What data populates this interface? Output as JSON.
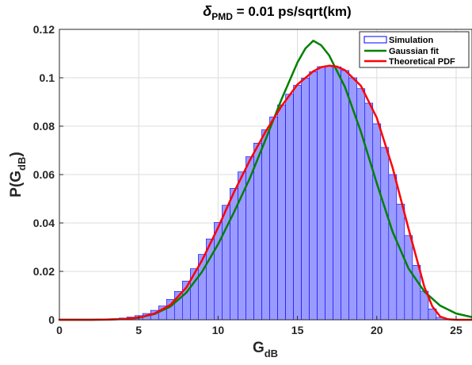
{
  "chart_data": {
    "type": "bar",
    "title_symbol": "δ",
    "title_subscript": "PMD",
    "title_rest": " = 0.01 ps/sqrt(km)",
    "xlabel_main": "G",
    "xlabel_sub": "dB",
    "ylabel_main": "P(G",
    "ylabel_sub": "dB",
    "ylabel_close": ")",
    "xlim": [
      0,
      26
    ],
    "ylim": [
      0,
      0.12
    ],
    "xticks": [
      0,
      5,
      10,
      15,
      20,
      25
    ],
    "xtick_labels": [
      "0",
      "5",
      "10",
      "15",
      "20",
      "25"
    ],
    "yticks": [
      0,
      0.02,
      0.04,
      0.06,
      0.08,
      0.1,
      0.12
    ],
    "ytick_labels": [
      "0",
      "0.02",
      "0.04",
      "0.06",
      "0.08",
      "0.1",
      "0.12"
    ],
    "grid": true,
    "legend_position": "top-right",
    "series": [
      {
        "name": "Simulation",
        "kind": "histogram",
        "color": "#0000ff",
        "fill": "#9b9bff",
        "x": [
          0.5,
          1,
          1.5,
          2,
          2.5,
          3,
          3.5,
          4,
          4.5,
          5,
          5.5,
          6,
          6.5,
          7,
          7.5,
          8,
          8.5,
          9,
          9.5,
          10,
          10.5,
          11,
          11.5,
          12,
          12.5,
          13,
          13.5,
          14,
          14.5,
          15,
          15.5,
          16,
          16.5,
          17,
          17.5,
          18,
          18.5,
          19,
          19.5,
          20,
          20.5,
          21,
          21.5,
          22,
          22.5,
          23,
          23.5,
          24,
          24.5
        ],
        "values": [
          0,
          0,
          0,
          0,
          0,
          0.0002,
          0.0004,
          0.0007,
          0.0011,
          0.0017,
          0.0026,
          0.0039,
          0.0057,
          0.0084,
          0.0117,
          0.016,
          0.0211,
          0.027,
          0.0334,
          0.0402,
          0.0473,
          0.0543,
          0.0611,
          0.0674,
          0.073,
          0.0785,
          0.0838,
          0.0888,
          0.0932,
          0.0969,
          0.0999,
          0.1025,
          0.1046,
          0.105,
          0.1045,
          0.103,
          0.1,
          0.0955,
          0.0895,
          0.081,
          0.0712,
          0.06,
          0.0478,
          0.0348,
          0.0225,
          0.0118,
          0.0045,
          0.001,
          0
        ]
      },
      {
        "name": "Gaussian fit",
        "kind": "line",
        "color": "#008000",
        "x": [
          0,
          1,
          2,
          3,
          4,
          5,
          6,
          7,
          8,
          9,
          10,
          11,
          12,
          13,
          14,
          15,
          15.5,
          16,
          16.5,
          17,
          18,
          19,
          20,
          21,
          22,
          23,
          24,
          25,
          26
        ],
        "values": [
          0,
          0,
          1e-05,
          6e-05,
          0.0003,
          0.0009,
          0.0024,
          0.0055,
          0.0112,
          0.0199,
          0.0312,
          0.0444,
          0.0585,
          0.0746,
          0.0911,
          0.1063,
          0.1121,
          0.1153,
          0.1134,
          0.1092,
          0.0961,
          0.0777,
          0.0564,
          0.0363,
          0.0212,
          0.0116,
          0.0058,
          0.0026,
          0.0011
        ]
      },
      {
        "name": "Theoretical PDF",
        "kind": "line",
        "color": "#ff0000",
        "x": [
          0,
          1,
          2,
          3,
          4,
          5,
          6,
          7,
          8,
          9,
          10,
          11,
          12,
          13,
          14,
          15,
          16,
          16.5,
          17,
          17.5,
          18,
          19,
          20,
          21,
          22,
          23,
          23.5,
          24,
          24.5,
          25,
          26
        ],
        "values": [
          0,
          0,
          0,
          0.0001,
          0.0003,
          0.0009,
          0.0026,
          0.0062,
          0.0133,
          0.0247,
          0.0381,
          0.0527,
          0.0659,
          0.0778,
          0.0883,
          0.0972,
          0.1027,
          0.1044,
          0.105,
          0.1046,
          0.1031,
          0.0967,
          0.0834,
          0.0628,
          0.0377,
          0.0135,
          0.0055,
          0.0013,
          0.0002,
          0,
          0
        ]
      }
    ]
  }
}
